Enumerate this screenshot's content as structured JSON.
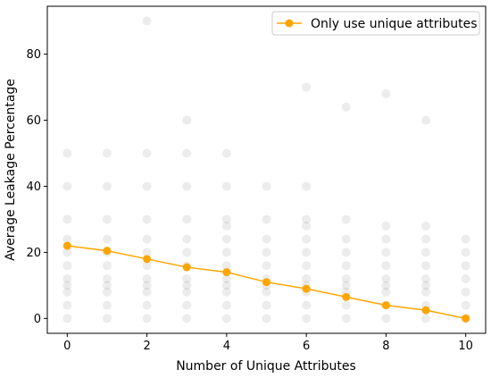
{
  "chart_data": {
    "type": "scatter",
    "xlabel": "Number of Unique Attributes",
    "ylabel": "Average Leakage Percentage",
    "xlim": [
      -0.5,
      10.5
    ],
    "ylim": [
      -4.5,
      94.5
    ],
    "xticks": [
      0,
      2,
      4,
      6,
      8,
      10
    ],
    "yticks": [
      0,
      20,
      40,
      60,
      80
    ],
    "grid": false,
    "legend_position": "top-right",
    "scatter_color": "#808080",
    "scatter_points": [
      [
        0,
        0
      ],
      [
        0,
        4
      ],
      [
        0,
        8
      ],
      [
        0,
        10
      ],
      [
        0,
        12
      ],
      [
        0,
        16
      ],
      [
        0,
        20
      ],
      [
        0,
        24
      ],
      [
        0,
        30
      ],
      [
        0,
        40
      ],
      [
        0,
        50
      ],
      [
        1,
        0
      ],
      [
        1,
        4
      ],
      [
        1,
        8
      ],
      [
        1,
        10
      ],
      [
        1,
        12
      ],
      [
        1,
        16
      ],
      [
        1,
        20
      ],
      [
        1,
        24
      ],
      [
        1,
        30
      ],
      [
        1,
        40
      ],
      [
        1,
        50
      ],
      [
        2,
        0
      ],
      [
        2,
        4
      ],
      [
        2,
        8
      ],
      [
        2,
        10
      ],
      [
        2,
        12
      ],
      [
        2,
        16
      ],
      [
        2,
        20
      ],
      [
        2,
        24
      ],
      [
        2,
        30
      ],
      [
        2,
        40
      ],
      [
        2,
        50
      ],
      [
        2,
        90
      ],
      [
        3,
        0
      ],
      [
        3,
        4
      ],
      [
        3,
        8
      ],
      [
        3,
        10
      ],
      [
        3,
        12
      ],
      [
        3,
        16
      ],
      [
        3,
        20
      ],
      [
        3,
        24
      ],
      [
        3,
        30
      ],
      [
        3,
        40
      ],
      [
        3,
        50
      ],
      [
        3,
        60
      ],
      [
        4,
        0
      ],
      [
        4,
        4
      ],
      [
        4,
        8
      ],
      [
        4,
        10
      ],
      [
        4,
        12
      ],
      [
        4,
        16
      ],
      [
        4,
        20
      ],
      [
        4,
        24
      ],
      [
        4,
        28
      ],
      [
        4,
        30
      ],
      [
        4,
        40
      ],
      [
        4,
        50
      ],
      [
        5,
        0
      ],
      [
        5,
        4
      ],
      [
        5,
        8
      ],
      [
        5,
        10
      ],
      [
        5,
        12
      ],
      [
        5,
        16
      ],
      [
        5,
        20
      ],
      [
        5,
        24
      ],
      [
        5,
        30
      ],
      [
        5,
        40
      ],
      [
        6,
        0
      ],
      [
        6,
        4
      ],
      [
        6,
        8
      ],
      [
        6,
        10
      ],
      [
        6,
        12
      ],
      [
        6,
        16
      ],
      [
        6,
        20
      ],
      [
        6,
        24
      ],
      [
        6,
        28
      ],
      [
        6,
        30
      ],
      [
        6,
        40
      ],
      [
        6,
        70
      ],
      [
        7,
        0
      ],
      [
        7,
        4
      ],
      [
        7,
        8
      ],
      [
        7,
        10
      ],
      [
        7,
        12
      ],
      [
        7,
        16
      ],
      [
        7,
        20
      ],
      [
        7,
        24
      ],
      [
        7,
        30
      ],
      [
        7,
        64
      ],
      [
        8,
        0
      ],
      [
        8,
        4
      ],
      [
        8,
        8
      ],
      [
        8,
        10
      ],
      [
        8,
        12
      ],
      [
        8,
        16
      ],
      [
        8,
        20
      ],
      [
        8,
        24
      ],
      [
        8,
        28
      ],
      [
        8,
        68
      ],
      [
        9,
        0
      ],
      [
        9,
        4
      ],
      [
        9,
        8
      ],
      [
        9,
        10
      ],
      [
        9,
        12
      ],
      [
        9,
        16
      ],
      [
        9,
        20
      ],
      [
        9,
        24
      ],
      [
        9,
        28
      ],
      [
        9,
        60
      ],
      [
        10,
        0
      ],
      [
        10,
        4
      ],
      [
        10,
        8
      ],
      [
        10,
        12
      ],
      [
        10,
        16
      ],
      [
        10,
        20
      ],
      [
        10,
        24
      ]
    ],
    "series": [
      {
        "name": "Only use unique attributes",
        "color": "#ffa500",
        "x": [
          0,
          1,
          2,
          3,
          4,
          5,
          6,
          7,
          8,
          9,
          10
        ],
        "y": [
          22,
          20.5,
          18,
          15.5,
          14,
          11,
          9,
          6.5,
          4,
          2.5,
          0
        ]
      }
    ]
  }
}
